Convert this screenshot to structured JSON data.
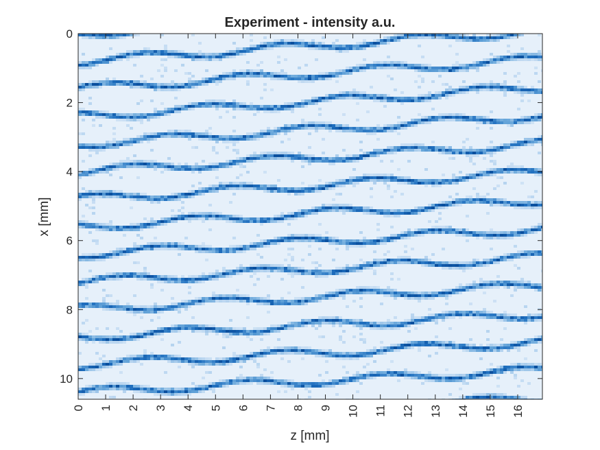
{
  "chart_data": {
    "type": "heatmap",
    "title": "Experiment - intensity a.u.",
    "xlabel": "z [mm]",
    "ylabel": "x [mm]",
    "xlim": [
      0,
      16.9
    ],
    "ylim": [
      0,
      10.6
    ],
    "y_reversed": true,
    "x_ticks": [
      0,
      1,
      2,
      3,
      4,
      5,
      6,
      7,
      8,
      9,
      10,
      11,
      12,
      13,
      14,
      15,
      16
    ],
    "x_tick_labels": [
      "0",
      "1",
      "2",
      "3",
      "4",
      "5",
      "6",
      "7",
      "8",
      "9",
      "10",
      "11",
      "12",
      "13",
      "14",
      "15",
      "16"
    ],
    "y_ticks": [
      0,
      2,
      4,
      6,
      8,
      10
    ],
    "y_tick_labels": [
      "0",
      "2",
      "4",
      "6",
      "8",
      "10"
    ],
    "colormap": [
      "#e6f0fa",
      "#b5d3ef",
      "#6aa8db",
      "#1f6fbf",
      "#0a4f9e"
    ],
    "grid": false,
    "fringes": {
      "count": 15,
      "left_period_mm": 0.8,
      "right_period_mm": 0.82,
      "right_offset_mm": -0.9,
      "ripple_amplitude_mm": 0.12,
      "ripple_wavelength_mm": 5.0
    }
  }
}
